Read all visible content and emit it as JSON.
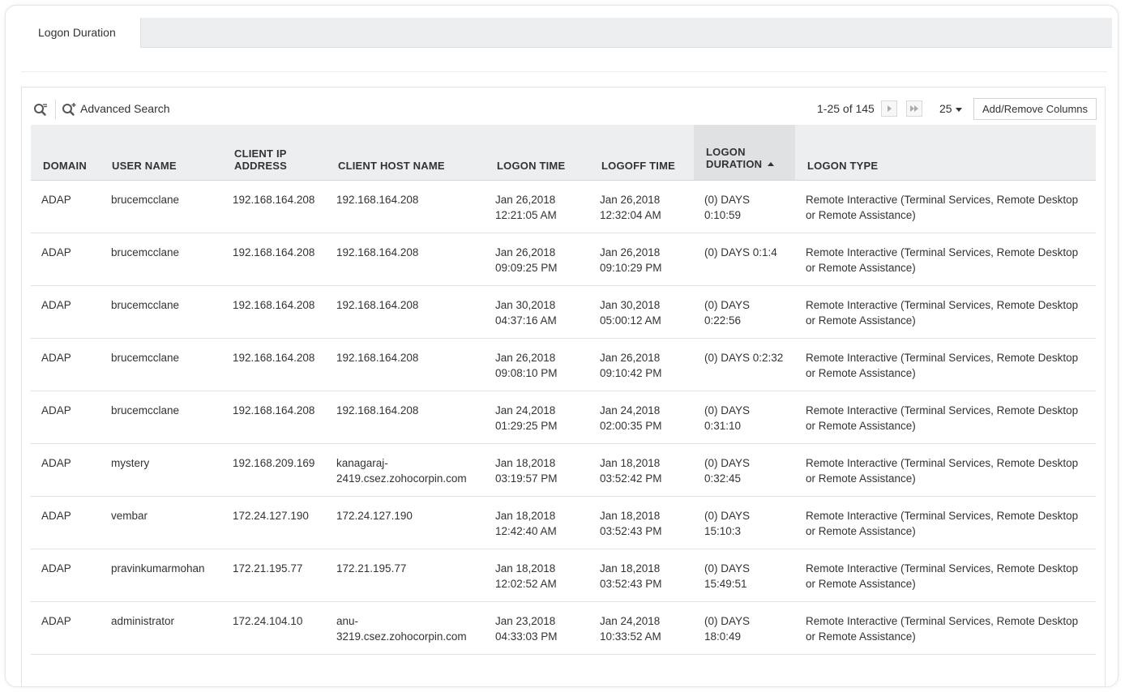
{
  "tabs": [
    {
      "label": "Logon Duration",
      "active": true
    }
  ],
  "toolbar": {
    "advanced_search_label": "Advanced Search",
    "page_info": "1-25 of 145",
    "per_page": "25",
    "add_remove_columns": "Add/Remove Columns"
  },
  "table": {
    "headers": {
      "domain": "DOMAIN",
      "user_name": "USER NAME",
      "client_ip_line1": "CLIENT IP",
      "client_ip_line2": "ADDRESS",
      "client_host": "CLIENT HOST NAME",
      "logon_time": "LOGON TIME",
      "logoff_time": "LOGOFF TIME",
      "logon_duration_line1": "LOGON",
      "logon_duration_line2": "DURATION",
      "logon_type": "LOGON TYPE"
    },
    "sorted_column": "LOGON DURATION",
    "sort_direction": "ascending",
    "rows": [
      {
        "domain": "ADAP",
        "user": "brucemcclane",
        "ip": "192.168.164.208",
        "host1": "192.168.164.208",
        "host2": "",
        "logon1": "Jan 26,2018",
        "logon2": "12:21:05 AM",
        "logoff1": "Jan 26,2018",
        "logoff2": "12:32:04 AM",
        "dur1": "(0) DAYS",
        "dur2": "0:10:59",
        "type1": "Remote Interactive (Terminal Services, Remote Desktop",
        "type2": "or Remote Assistance)"
      },
      {
        "domain": "ADAP",
        "user": "brucemcclane",
        "ip": "192.168.164.208",
        "host1": "192.168.164.208",
        "host2": "",
        "logon1": "Jan 26,2018",
        "logon2": "09:09:25 PM",
        "logoff1": "Jan 26,2018",
        "logoff2": "09:10:29 PM",
        "dur1": "(0) DAYS 0:1:4",
        "dur2": "",
        "type1": "Remote Interactive (Terminal Services, Remote Desktop",
        "type2": "or Remote Assistance)"
      },
      {
        "domain": "ADAP",
        "user": "brucemcclane",
        "ip": "192.168.164.208",
        "host1": "192.168.164.208",
        "host2": "",
        "logon1": "Jan 30,2018",
        "logon2": "04:37:16 AM",
        "logoff1": "Jan 30,2018",
        "logoff2": "05:00:12 AM",
        "dur1": "(0) DAYS",
        "dur2": "0:22:56",
        "type1": "Remote Interactive (Terminal Services, Remote Desktop",
        "type2": "or Remote Assistance)"
      },
      {
        "domain": "ADAP",
        "user": "brucemcclane",
        "ip": "192.168.164.208",
        "host1": "192.168.164.208",
        "host2": "",
        "logon1": "Jan 26,2018",
        "logon2": "09:08:10 PM",
        "logoff1": "Jan 26,2018",
        "logoff2": "09:10:42 PM",
        "dur1": "(0) DAYS 0:2:32",
        "dur2": "",
        "type1": "Remote Interactive (Terminal Services, Remote Desktop",
        "type2": "or Remote Assistance)"
      },
      {
        "domain": "ADAP",
        "user": "brucemcclane",
        "ip": "192.168.164.208",
        "host1": "192.168.164.208",
        "host2": "",
        "logon1": "Jan 24,2018",
        "logon2": "01:29:25 PM",
        "logoff1": "Jan 24,2018",
        "logoff2": "02:00:35 PM",
        "dur1": "(0) DAYS",
        "dur2": "0:31:10",
        "type1": "Remote Interactive (Terminal Services, Remote Desktop",
        "type2": "or Remote Assistance)"
      },
      {
        "domain": "ADAP",
        "user": "mystery",
        "ip": "192.168.209.169",
        "host1": "kanagaraj-",
        "host2": "2419.csez.zohocorpin.com",
        "logon1": "Jan 18,2018",
        "logon2": "03:19:57 PM",
        "logoff1": "Jan 18,2018",
        "logoff2": "03:52:42 PM",
        "dur1": "(0) DAYS",
        "dur2": "0:32:45",
        "type1": "Remote Interactive (Terminal Services, Remote Desktop",
        "type2": "or Remote Assistance)"
      },
      {
        "domain": "ADAP",
        "user": "vembar",
        "ip": "172.24.127.190",
        "host1": "172.24.127.190",
        "host2": "",
        "logon1": "Jan 18,2018",
        "logon2": "12:42:40 AM",
        "logoff1": "Jan 18,2018",
        "logoff2": "03:52:43 PM",
        "dur1": "(0) DAYS",
        "dur2": "15:10:3",
        "type1": "Remote Interactive (Terminal Services, Remote Desktop",
        "type2": "or Remote Assistance)"
      },
      {
        "domain": "ADAP",
        "user": "pravinkumarmohan",
        "ip": "172.21.195.77",
        "host1": "172.21.195.77",
        "host2": "",
        "logon1": "Jan 18,2018",
        "logon2": "12:02:52 AM",
        "logoff1": "Jan 18,2018",
        "logoff2": "03:52:43 PM",
        "dur1": "(0) DAYS",
        "dur2": "15:49:51",
        "type1": "Remote Interactive (Terminal Services, Remote Desktop",
        "type2": "or Remote Assistance)"
      },
      {
        "domain": "ADAP",
        "user": "administrator",
        "ip": "172.24.104.10",
        "host1": "anu-",
        "host2": "3219.csez.zohocorpin.com",
        "logon1": "Jan 23,2018",
        "logon2": "04:33:03 PM",
        "logoff1": "Jan 24,2018",
        "logoff2": "10:33:52 AM",
        "dur1": "(0) DAYS",
        "dur2": "18:0:49",
        "type1": "Remote Interactive (Terminal Services, Remote Desktop",
        "type2": "or Remote Assistance)"
      }
    ]
  }
}
